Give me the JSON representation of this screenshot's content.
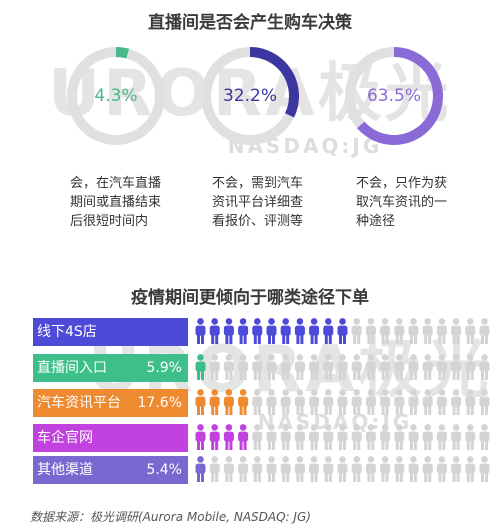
{
  "watermark": {
    "brand": "URORA极光",
    "sub": "NASDAQ:JG"
  },
  "chart_data": [
    {
      "type": "pie",
      "title": "直播间是否会产生购车决策",
      "items": [
        {
          "value": 4.3,
          "label": "4.3%",
          "desc": "会，在汽车直播期间或直播结束后很短时间内",
          "color": "#49b98a"
        },
        {
          "value": 32.2,
          "label": "32.2%",
          "desc": "不会，需到汽车资讯平台详细查看报价、评测等",
          "color": "#3c36a0"
        },
        {
          "value": 63.5,
          "label": "63.5%",
          "desc": "不会，只作为获取汽车资讯的一种途径",
          "color": "#8a6ad6"
        }
      ]
    },
    {
      "type": "bar",
      "title": "疫情期间更倾向于哪类途径下单",
      "categories": [
        "线下4S店",
        "直播间入口",
        "汽车资讯平台",
        "车企官网",
        "其他渠道"
      ],
      "values": [
        null,
        5.9,
        17.6,
        null,
        5.4
      ],
      "value_labels": [
        "",
        "5.9%",
        "17.6%",
        "",
        "5.4%"
      ],
      "icons_filled": [
        11,
        1,
        4,
        4,
        1
      ],
      "icons_total": 21,
      "colors": [
        "#4d4ad8",
        "#3dbf8a",
        "#ee8a30",
        "#c242df",
        "#7a68d0"
      ],
      "empty_color": "#d4d4d4"
    }
  ],
  "source": "数据来源：极光调研(Aurora Mobile, NASDAQ: JG)"
}
